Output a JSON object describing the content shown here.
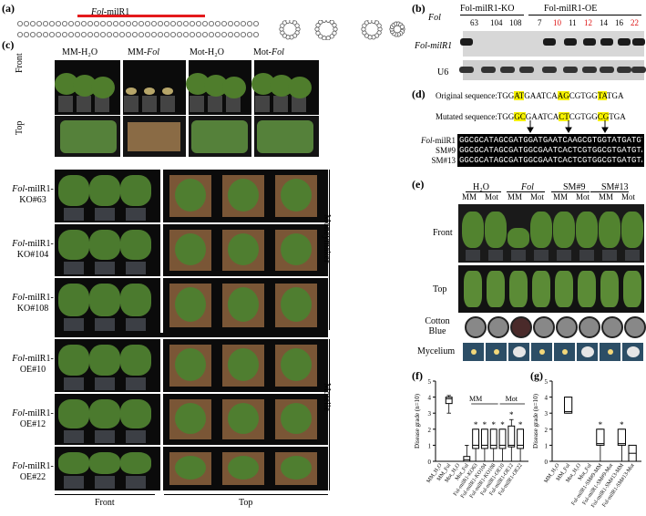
{
  "panel_labels": {
    "a": "(a)",
    "b": "(b)",
    "c": "(c)",
    "d": "(d)",
    "e": "(e)",
    "f": "(f)",
    "g": "(g)"
  },
  "panel_a": {
    "label_main": "Fol",
    "label_sub": "-milR1"
  },
  "panel_b": {
    "ko_group": "Fol-milR1-KO",
    "oe_group": "Fol-milR1-OE",
    "fol_col": "Fol",
    "ko_lanes": [
      "63",
      "104",
      "108"
    ],
    "oe_lanes": [
      "7",
      "10",
      "11",
      "12",
      "14",
      "16",
      "22"
    ],
    "oe_red": [
      "10",
      "12",
      "22"
    ],
    "row1": "Fol-milR1",
    "row2": "U6"
  },
  "panel_c": {
    "top_headers": [
      "MM-H₂O",
      "MM-Fol",
      "Mot-H₂O",
      "Mot-Fol"
    ],
    "view_front": "Front",
    "view_top": "Top",
    "rows": [
      "Fol-milR1-KO#63",
      "Fol-milR1-KO#104",
      "Fol-milR1-KO#108",
      "Fol-milR1-OE#10",
      "Fol-milR1-OE#12",
      "Fol-milR1-OE#22"
    ],
    "side_moneymaker": "Moneymaker",
    "side_motelle": "Motelle",
    "bottom_front": "Front",
    "bottom_top": "Top"
  },
  "panel_d": {
    "original_prefix": "Original sequence:",
    "original_seq": [
      "TGG",
      "AT",
      "GAATCA",
      "AG",
      "CGTGG",
      "TA",
      "TGA"
    ],
    "mutated_prefix": "Mutated sequence:",
    "mutated_seq": [
      "TGG",
      "GC",
      "GAATCA",
      "CT",
      "CGTGG",
      "CG",
      "TGA"
    ],
    "rows": [
      {
        "name": "Fol-milR1",
        "seq": "GGCGCATAGCGATGGATGAATCAAGCGTGGTATGATGTAAA"
      },
      {
        "name": "SM#9",
        "seq": "GGCGCATAGCGATGGCGAATCACTCGTGGCGTGATGTAAA"
      },
      {
        "name": "SM#13",
        "seq": "GGCGCATAGCGATGGCGAATCACTCGTGGCGTGATGTAAA"
      }
    ]
  },
  "panel_e": {
    "groups": [
      "H₂O",
      "Fol",
      "SM#9",
      "SM#13"
    ],
    "sub": [
      "MM",
      "Mot",
      "MM",
      "Mot",
      "MM",
      "Mot",
      "MM",
      "Mot"
    ],
    "rows": [
      "Front",
      "Top",
      "Cotton Blue",
      "Mycelium"
    ]
  },
  "chart_data": [
    {
      "type": "box",
      "panel": "f",
      "ylabel": "Disease grade (n=10)",
      "ylim": [
        0,
        5
      ],
      "yticks": [
        0,
        1,
        2,
        3,
        4,
        5
      ],
      "group_labels": [
        "MM",
        "Mot"
      ],
      "categories": [
        "MM_H₂O",
        "MM_Fol",
        "Mot_H₂O",
        "Mot_Fol",
        "Fol-milR1-KO63",
        "Fol-milR1-KO104",
        "Fol-milR1-KO108",
        "Fol-milR1-OE10",
        "Fol-milR1-OE12",
        "Fol-milR1-OE22"
      ],
      "boxes": [
        {
          "min": 0,
          "q1": 0,
          "median": 0,
          "q3": 0,
          "max": 0,
          "sig": false
        },
        {
          "min": 3,
          "q1": 3.6,
          "median": 3.9,
          "q3": 4.0,
          "max": 4.1,
          "sig": false
        },
        {
          "min": 0,
          "q1": 0,
          "median": 0,
          "q3": 0,
          "max": 0,
          "sig": false
        },
        {
          "min": 0,
          "q1": 0,
          "median": 0.1,
          "q3": 0.3,
          "max": 1.0,
          "sig": false
        },
        {
          "min": 0,
          "q1": 0.8,
          "median": 1.0,
          "q3": 2.0,
          "max": 2.0,
          "sig": true
        },
        {
          "min": 0,
          "q1": 0.8,
          "median": 1.0,
          "q3": 2.0,
          "max": 2.0,
          "sig": true
        },
        {
          "min": 0,
          "q1": 0.8,
          "median": 1.0,
          "q3": 2.0,
          "max": 2.0,
          "sig": true
        },
        {
          "min": 0,
          "q1": 0.8,
          "median": 1.0,
          "q3": 2.0,
          "max": 2.0,
          "sig": true
        },
        {
          "min": 0,
          "q1": 0.9,
          "median": 1.0,
          "q3": 2.2,
          "max": 2.6,
          "sig": true
        },
        {
          "min": 0,
          "q1": 0.8,
          "median": 1.0,
          "q3": 2.0,
          "max": 2.0,
          "sig": true
        }
      ]
    },
    {
      "type": "box",
      "panel": "g",
      "ylabel": "Disease grade (n=10)",
      "ylim": [
        0,
        5
      ],
      "yticks": [
        0,
        1,
        2,
        3,
        4,
        5
      ],
      "categories": [
        "MM_H₂O",
        "MM_Fol",
        "Mot_H₂O",
        "Mot_Fol",
        "Fol-milR1-SM#9-MM",
        "Fol-milR1-SM#9-Mot",
        "Fol-milR1-SM#13-MM",
        "Fol-milR1-SM#13-Mot"
      ],
      "boxes": [
        {
          "min": 0,
          "q1": 0,
          "median": 0,
          "q3": 0,
          "max": 0,
          "sig": false
        },
        {
          "min": 3,
          "q1": 3.0,
          "median": 3.1,
          "q3": 4.0,
          "max": 4.0,
          "sig": false
        },
        {
          "min": 0,
          "q1": 0,
          "median": 0,
          "q3": 0,
          "max": 0,
          "sig": false
        },
        {
          "min": 0,
          "q1": 0,
          "median": 0,
          "q3": 0,
          "max": 0,
          "sig": false
        },
        {
          "min": 0,
          "q1": 1.0,
          "median": 1.1,
          "q3": 2.0,
          "max": 2.0,
          "sig": true
        },
        {
          "min": 0,
          "q1": 0,
          "median": 0,
          "q3": 0,
          "max": 0,
          "sig": false
        },
        {
          "min": 0,
          "q1": 1.0,
          "median": 1.1,
          "q3": 2.0,
          "max": 2.0,
          "sig": true
        },
        {
          "min": 0,
          "q1": 0,
          "median": 0.5,
          "q3": 1.0,
          "max": 1.0,
          "sig": false
        }
      ]
    }
  ]
}
